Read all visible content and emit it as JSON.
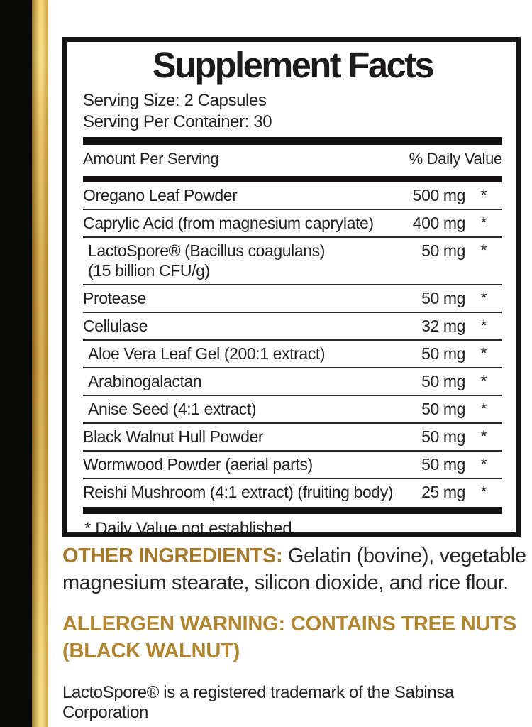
{
  "colors": {
    "accent_gold_text": "#a5792c",
    "allergen_gold_text": "#b0852e",
    "strip_gold": "#c9962f",
    "strip_black": "#0a0a08",
    "text_black": "#231f20"
  },
  "panel": {
    "title": "Supplement Facts",
    "serving_size": "Serving Size: 2 Capsules",
    "serving_per_container": "Serving Per Container: 30",
    "header": {
      "amount_label": "Amount Per Serving",
      "daily_value_label": "% Daily Value"
    },
    "rows": [
      {
        "name": "Oregano Leaf Powder",
        "amount": "500 mg",
        "dv": "*"
      },
      {
        "name": "Caprylic Acid (from magnesium caprylate)",
        "amount": "400 mg",
        "dv": "*"
      },
      {
        "name": "LactoSpore® (Bacillus coagulans)",
        "name2": "(15 billion CFU/g)",
        "amount": "50 mg",
        "dv": "*"
      },
      {
        "name": "Protease",
        "amount": "50 mg",
        "dv": "*"
      },
      {
        "name": "Cellulase",
        "amount": "32 mg",
        "dv": "*"
      },
      {
        "name": "Aloe Vera Leaf Gel (200:1 extract)",
        "amount": "50 mg",
        "dv": "*"
      },
      {
        "name": "Arabinogalactan",
        "amount": "50 mg",
        "dv": "*"
      },
      {
        "name": "Anise Seed (4:1 extract)",
        "amount": "50 mg",
        "dv": "*"
      },
      {
        "name": "Black Walnut Hull Powder",
        "amount": "50 mg",
        "dv": "*"
      },
      {
        "name": "Wormwood Powder (aerial parts)",
        "amount": "50 mg",
        "dv": "*"
      },
      {
        "name": "Reishi Mushroom (4:1 extract) (fruiting body)",
        "amount": "25 mg",
        "dv": "*"
      }
    ],
    "footnote": "* Daily Value not established."
  },
  "other_ingredients": {
    "label": "OTHER INGREDIENTS:",
    "text": " Gelatin (bovine), vegetable magnesium stearate, silicon dioxide, and rice flour."
  },
  "allergen_warning": "ALLERGEN WARNING: CONTAINS TREE NUTS (BLACK WALNUT)",
  "trademark_note": "LactoSpore® is a registered trademark of the Sabinsa Corporation"
}
